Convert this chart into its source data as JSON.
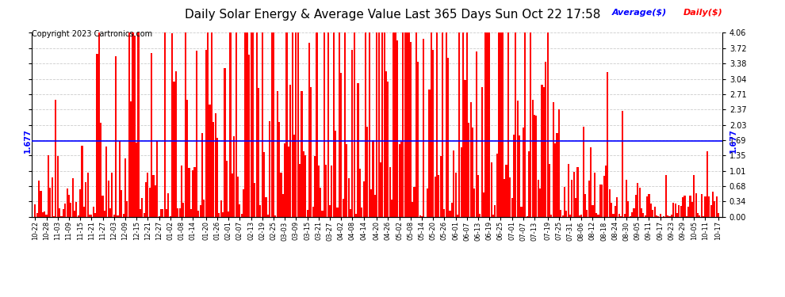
{
  "title": "Daily Solar Energy & Average Value Last 365 Days Sun Oct 22 17:58",
  "copyright": "Copyright 2023 Cartronics.com",
  "average_label": "Average($)",
  "daily_label": "Daily($)",
  "average_value": 1.677,
  "average_line_color": "blue",
  "bar_color": "red",
  "ylim": [
    0.0,
    4.06
  ],
  "yticks": [
    0.0,
    0.34,
    0.68,
    1.01,
    1.35,
    1.69,
    2.03,
    2.37,
    2.71,
    3.04,
    3.38,
    3.72,
    4.06
  ],
  "background_color": "#ffffff",
  "grid_color": "#cccccc",
  "x_labels": [
    "10-22",
    "10-28",
    "11-03",
    "11-09",
    "11-15",
    "11-21",
    "11-27",
    "12-03",
    "12-09",
    "12-15",
    "12-21",
    "12-27",
    "01-02",
    "01-08",
    "01-14",
    "01-20",
    "01-26",
    "02-01",
    "02-07",
    "02-13",
    "02-19",
    "02-25",
    "03-03",
    "03-09",
    "03-15",
    "03-21",
    "03-27",
    "04-02",
    "04-08",
    "04-14",
    "04-20",
    "04-26",
    "05-02",
    "05-08",
    "05-14",
    "05-20",
    "05-26",
    "06-01",
    "06-07",
    "06-13",
    "06-19",
    "06-25",
    "07-01",
    "07-07",
    "07-13",
    "07-19",
    "07-25",
    "07-31",
    "08-06",
    "08-12",
    "08-18",
    "08-24",
    "08-30",
    "09-05",
    "09-11",
    "09-17",
    "09-23",
    "09-29",
    "10-05",
    "10-11",
    "10-17"
  ],
  "n_bars": 365,
  "seed": 42,
  "title_fontsize": 11,
  "copyright_fontsize": 7,
  "tick_fontsize": 7,
  "xlabel_fontsize": 6
}
